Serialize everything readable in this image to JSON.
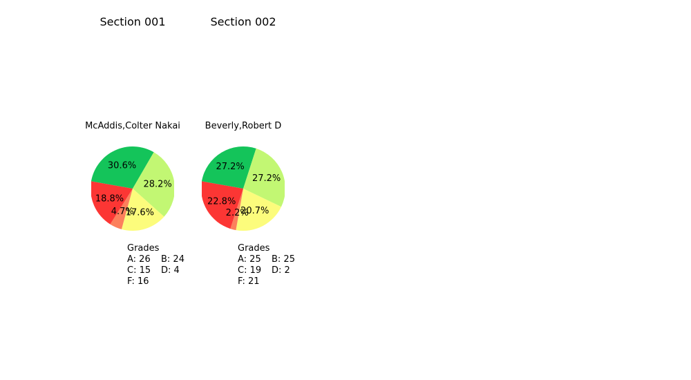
{
  "chart_data": [
    {
      "type": "pie",
      "title": "Section 001",
      "subtitle": "McAddis,Colter Nakai",
      "categories": [
        "A",
        "B",
        "C",
        "D",
        "F"
      ],
      "values": [
        26,
        24,
        15,
        4,
        16
      ],
      "percent_labels": [
        "30.6%",
        "28.2%",
        "17.6%",
        "4.7%",
        "18.8%"
      ],
      "colors": [
        "#14c45a",
        "#c2f773",
        "#fcfc7c",
        "#fc805c",
        "#fc3634"
      ],
      "legend": {
        "title": "Grades",
        "rows": [
          [
            "A: 26",
            "B: 24"
          ],
          [
            "C: 15",
            "D: 4"
          ],
          [
            "F: 16"
          ]
        ]
      }
    },
    {
      "type": "pie",
      "title": "Section 002",
      "subtitle": "Beverly,Robert D",
      "categories": [
        "A",
        "B",
        "C",
        "D",
        "F"
      ],
      "values": [
        25,
        25,
        19,
        2,
        21
      ],
      "percent_labels": [
        "27.2%",
        "27.2%",
        "20.7%",
        "2.2%",
        "22.8%"
      ],
      "colors": [
        "#14c45a",
        "#c2f773",
        "#fcfc7c",
        "#fc805c",
        "#fc3634"
      ],
      "legend": {
        "title": "Grades",
        "rows": [
          [
            "A: 25",
            "B: 25"
          ],
          [
            "C: 19",
            "D: 2"
          ],
          [
            "F: 21"
          ]
        ]
      }
    }
  ]
}
